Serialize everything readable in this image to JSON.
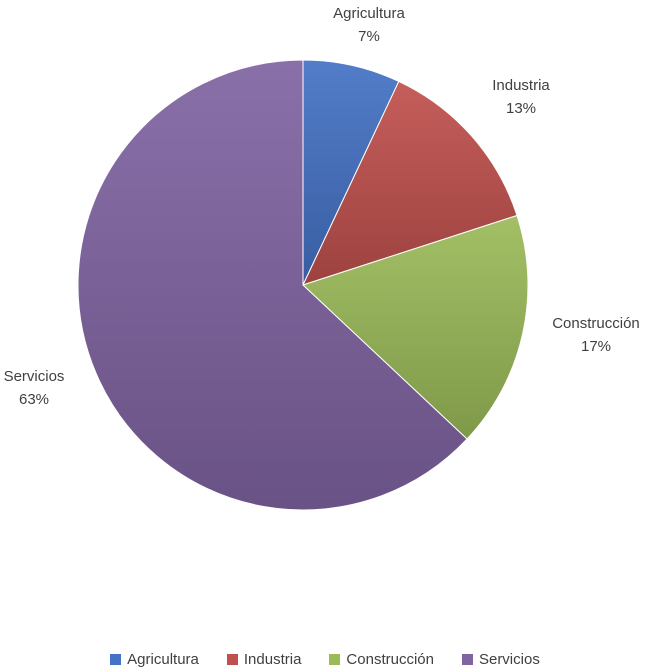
{
  "chart_data": {
    "type": "pie",
    "categories": [
      "Agricultura",
      "Industria",
      "Construcción",
      "Servicios"
    ],
    "values": [
      7,
      13,
      17,
      63
    ],
    "value_labels": [
      "7%",
      "13%",
      "17%",
      "63%"
    ],
    "colors": [
      "#4472C4",
      "#C0504D",
      "#9BBB59",
      "#8064A2"
    ],
    "legend": "bottom"
  }
}
